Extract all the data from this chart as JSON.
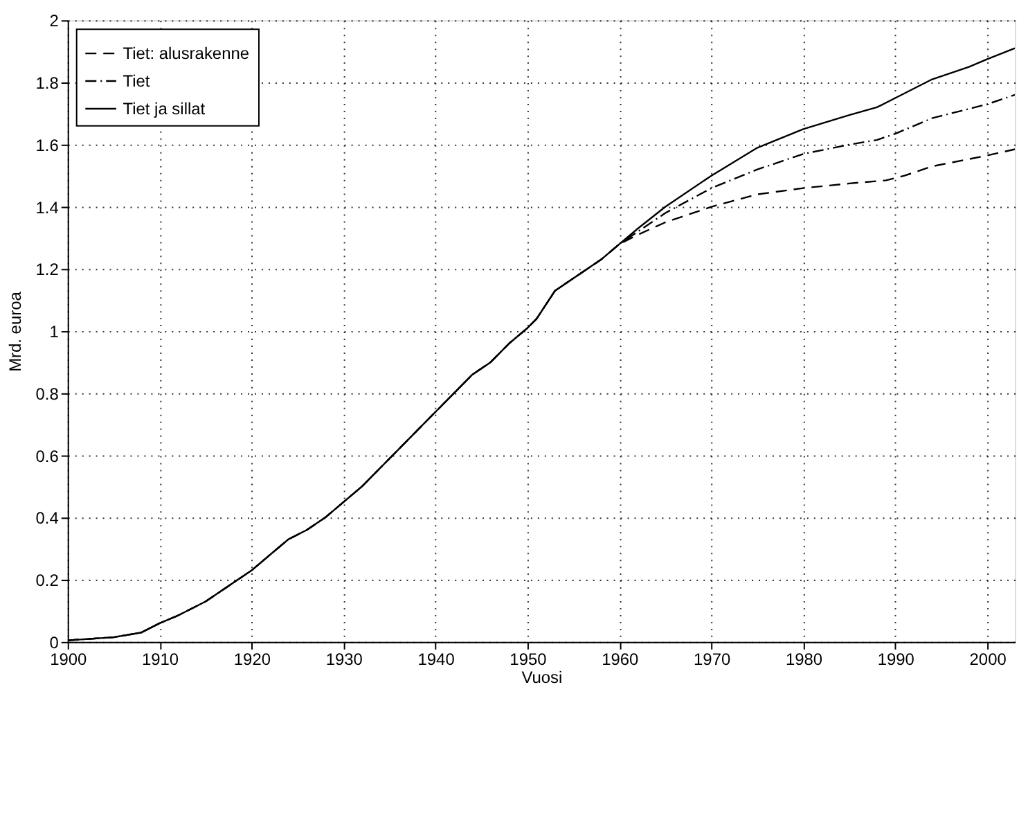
{
  "chart_data": {
    "type": "line",
    "xlabel": "Vuosi",
    "ylabel": "Mrd. euroa",
    "xlim": [
      1900,
      2003
    ],
    "xticks": [
      1900,
      1910,
      1920,
      1930,
      1940,
      1950,
      1960,
      1970,
      1980,
      1990,
      2000
    ],
    "ylim": [
      0,
      2
    ],
    "yticks": [
      0,
      0.2,
      0.4,
      0.6,
      0.8,
      1,
      1.2,
      1.4,
      1.6,
      1.8,
      2
    ],
    "grid": true,
    "legend": "top left",
    "marker": "none",
    "series": [
      {
        "name": "Tiet: alusrakenne",
        "color": "#000000",
        "line_style": "dashed",
        "x": [
          1900,
          1905,
          1908,
          1910,
          1912,
          1915,
          1918,
          1920,
          1922,
          1924,
          1926,
          1928,
          1930,
          1932,
          1934,
          1936,
          1938,
          1940,
          1942,
          1944,
          1946,
          1948,
          1950,
          1951,
          1953,
          1955,
          1958,
          1960,
          1962,
          1965,
          1970,
          1975,
          1980,
          1985,
          1989,
          1991,
          1994,
          2000,
          2003
        ],
        "values": [
          0.005,
          0.015,
          0.03,
          0.06,
          0.085,
          0.13,
          0.19,
          0.23,
          0.28,
          0.33,
          0.36,
          0.4,
          0.45,
          0.5,
          0.56,
          0.62,
          0.68,
          0.74,
          0.8,
          0.86,
          0.9,
          0.96,
          1.01,
          1.04,
          1.13,
          1.17,
          1.23,
          1.28,
          1.31,
          1.35,
          1.4,
          1.44,
          1.46,
          1.475,
          1.485,
          1.5,
          1.53,
          1.565,
          1.585
        ]
      },
      {
        "name": "Tiet",
        "color": "#000000",
        "line_style": "dashdot",
        "x": [
          1900,
          1905,
          1908,
          1910,
          1912,
          1915,
          1918,
          1920,
          1922,
          1924,
          1926,
          1928,
          1930,
          1932,
          1934,
          1936,
          1938,
          1940,
          1942,
          1944,
          1946,
          1948,
          1950,
          1951,
          1953,
          1955,
          1958,
          1960,
          1962,
          1965,
          1970,
          1975,
          1980,
          1985,
          1988,
          1990,
          1994,
          2000,
          2003
        ],
        "values": [
          0.005,
          0.015,
          0.03,
          0.06,
          0.085,
          0.13,
          0.19,
          0.23,
          0.28,
          0.33,
          0.36,
          0.4,
          0.45,
          0.5,
          0.56,
          0.62,
          0.68,
          0.74,
          0.8,
          0.86,
          0.9,
          0.96,
          1.01,
          1.04,
          1.13,
          1.17,
          1.23,
          1.28,
          1.32,
          1.38,
          1.46,
          1.52,
          1.57,
          1.6,
          1.615,
          1.635,
          1.685,
          1.73,
          1.76
        ]
      },
      {
        "name": "Tiet ja sillat",
        "color": "#000000",
        "line_style": "solid",
        "x": [
          1900,
          1905,
          1908,
          1910,
          1912,
          1915,
          1918,
          1920,
          1922,
          1924,
          1926,
          1928,
          1930,
          1932,
          1934,
          1936,
          1938,
          1940,
          1942,
          1944,
          1946,
          1948,
          1950,
          1951,
          1953,
          1955,
          1958,
          1960,
          1962,
          1965,
          1970,
          1975,
          1980,
          1985,
          1988,
          1990,
          1994,
          1998,
          2000,
          2003
        ],
        "values": [
          0.005,
          0.015,
          0.03,
          0.06,
          0.085,
          0.13,
          0.19,
          0.23,
          0.28,
          0.33,
          0.36,
          0.4,
          0.45,
          0.5,
          0.56,
          0.62,
          0.68,
          0.74,
          0.8,
          0.86,
          0.9,
          0.96,
          1.01,
          1.04,
          1.13,
          1.17,
          1.23,
          1.28,
          1.33,
          1.4,
          1.5,
          1.59,
          1.65,
          1.695,
          1.72,
          1.75,
          1.81,
          1.85,
          1.875,
          1.91
        ]
      }
    ]
  }
}
